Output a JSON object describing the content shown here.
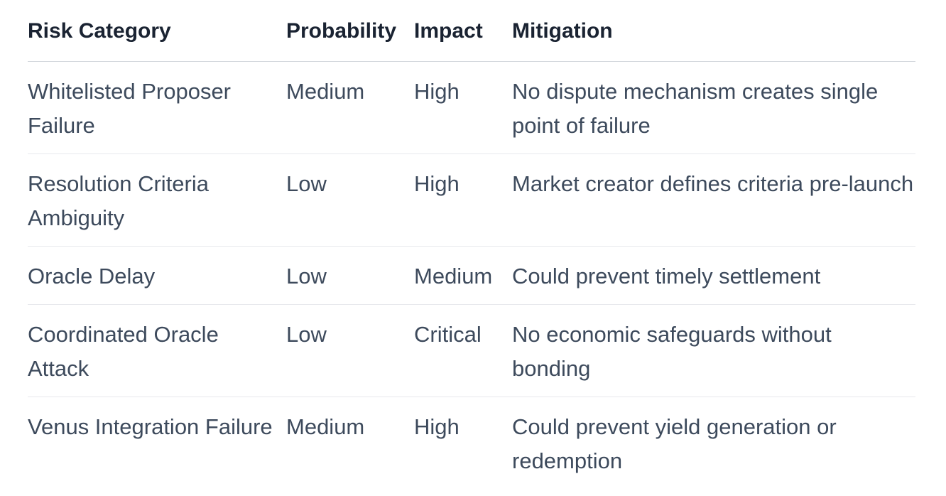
{
  "table": {
    "columns": {
      "risk": "Risk Category",
      "probability": "Probability",
      "impact": "Impact",
      "mitigation": "Mitigation"
    },
    "rows": [
      {
        "risk": "Whitelisted Proposer Failure",
        "probability": "Medium",
        "impact": "High",
        "mitigation": "No dispute mechanism creates single point of failure"
      },
      {
        "risk": "Resolution Criteria Ambiguity",
        "probability": "Low",
        "impact": "High",
        "mitigation": "Market creator defines criteria pre-launch"
      },
      {
        "risk": "Oracle Delay",
        "probability": "Low",
        "impact": "Medium",
        "mitigation": "Could prevent timely settlement"
      },
      {
        "risk": "Coordinated Oracle Attack",
        "probability": "Low",
        "impact": "Critical",
        "mitigation": "No economic safeguards without bonding"
      },
      {
        "risk": "Venus Integration Failure",
        "probability": "Medium",
        "impact": "High",
        "mitigation": "Could prevent yield generation or redemption"
      }
    ]
  },
  "colors": {
    "header_text": "#1a2332",
    "body_text": "#3d4a5c",
    "header_border": "#d3d7dc",
    "row_border": "#e8e9ed",
    "background": "#ffffff"
  }
}
